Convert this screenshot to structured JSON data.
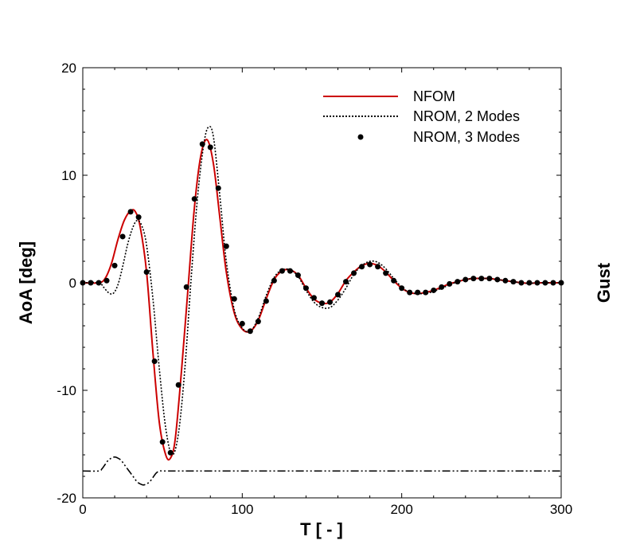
{
  "chart_data": {
    "type": "line",
    "xlabel": "T [ - ]",
    "ylabel": "AoA [deg]",
    "y2label": "Gust",
    "xlim": [
      0,
      300
    ],
    "ylim": [
      -20,
      20
    ],
    "xticks": [
      0,
      100,
      200,
      300
    ],
    "yticks": [
      -20,
      -10,
      0,
      10,
      20
    ],
    "grid": false,
    "legend_position": "top-right",
    "series": [
      {
        "name": "NFOM",
        "style": "solid",
        "color": "#cc0000",
        "x": [
          0,
          10,
          14,
          18,
          22,
          26,
          30,
          33,
          36,
          40,
          44,
          48,
          52,
          55,
          58,
          62,
          66,
          70,
          74,
          78,
          82,
          86,
          90,
          95,
          100,
          105,
          110,
          115,
          120,
          125,
          130,
          135,
          140,
          145,
          150,
          155,
          160,
          165,
          170,
          175,
          180,
          185,
          190,
          195,
          200,
          205,
          210,
          215,
          220,
          225,
          230,
          235,
          240,
          245,
          250,
          255,
          260,
          265,
          270,
          275,
          280,
          285,
          290,
          295,
          300
        ],
        "values": [
          0,
          0,
          0.4,
          1.8,
          4.0,
          5.8,
          6.7,
          6.6,
          5.2,
          1.0,
          -6.5,
          -13.0,
          -16.0,
          -16.3,
          -14.5,
          -8.0,
          -0.5,
          7.0,
          11.8,
          13.3,
          11.0,
          6.0,
          1.0,
          -2.8,
          -4.3,
          -4.5,
          -3.5,
          -1.5,
          0.3,
          1.1,
          1.2,
          0.7,
          -0.5,
          -1.5,
          -1.9,
          -1.8,
          -1.0,
          0.2,
          1.0,
          1.6,
          1.8,
          1.6,
          1.0,
          0.2,
          -0.5,
          -0.9,
          -1.0,
          -0.9,
          -0.7,
          -0.4,
          -0.1,
          0.1,
          0.3,
          0.4,
          0.4,
          0.4,
          0.3,
          0.2,
          0.1,
          0,
          -0.05,
          0,
          0,
          0,
          0
        ]
      },
      {
        "name": "NROM, 2 Modes",
        "style": "dotted",
        "color": "#000000",
        "x": [
          0,
          10,
          13,
          16,
          19,
          22,
          25,
          28,
          31,
          34,
          37,
          40,
          44,
          48,
          52,
          56,
          60,
          64,
          68,
          72,
          76,
          79,
          82,
          86,
          90,
          95,
          100,
          105,
          110,
          115,
          120,
          125,
          130,
          135,
          140,
          145,
          150,
          155,
          160,
          165,
          170,
          175,
          180,
          185,
          190,
          195,
          200,
          205,
          210,
          215,
          220,
          225,
          230,
          235,
          240,
          245,
          250,
          255,
          260,
          265,
          270,
          275,
          280,
          285,
          290,
          295,
          300
        ],
        "values": [
          0,
          0,
          -0.4,
          -0.9,
          -1.0,
          -0.2,
          1.5,
          3.5,
          5.0,
          5.8,
          5.3,
          3.5,
          -1.5,
          -8.0,
          -13.5,
          -16.0,
          -14.0,
          -8.0,
          0.5,
          8.0,
          13.0,
          14.5,
          13.5,
          8.0,
          2.0,
          -2.5,
          -4.2,
          -4.5,
          -3.3,
          -1.2,
          0.5,
          1.2,
          1.2,
          0.6,
          -0.7,
          -1.8,
          -2.3,
          -2.3,
          -1.6,
          -0.5,
          0.8,
          1.6,
          2.0,
          1.9,
          1.3,
          0.4,
          -0.4,
          -0.9,
          -1.0,
          -1.0,
          -0.8,
          -0.5,
          -0.2,
          0.1,
          0.3,
          0.4,
          0.4,
          0.4,
          0.3,
          0.2,
          0.1,
          0,
          -0.05,
          0,
          0,
          0,
          0
        ]
      },
      {
        "name": "NROM, 3 Modes",
        "style": "markers",
        "color": "#000000",
        "x": [
          0,
          5,
          10,
          15,
          20,
          25,
          30,
          35,
          40,
          45,
          50,
          55,
          60,
          65,
          70,
          75,
          80,
          85,
          90,
          95,
          100,
          105,
          110,
          115,
          120,
          125,
          130,
          135,
          140,
          145,
          150,
          155,
          160,
          165,
          170,
          175,
          180,
          185,
          190,
          195,
          200,
          205,
          210,
          215,
          220,
          225,
          230,
          235,
          240,
          245,
          250,
          255,
          260,
          265,
          270,
          275,
          280,
          285,
          290,
          295,
          300
        ],
        "values": [
          0,
          0,
          0,
          0.2,
          1.6,
          4.3,
          6.6,
          6.1,
          1.0,
          -7.3,
          -14.8,
          -15.8,
          -9.5,
          -0.4,
          7.8,
          12.9,
          12.6,
          8.8,
          3.4,
          -1.5,
          -3.8,
          -4.5,
          -3.6,
          -1.7,
          0.2,
          1.1,
          1.1,
          0.7,
          -0.5,
          -1.4,
          -1.9,
          -1.8,
          -1.1,
          0.1,
          0.9,
          1.5,
          1.7,
          1.5,
          0.9,
          0.2,
          -0.5,
          -0.9,
          -0.9,
          -0.9,
          -0.7,
          -0.4,
          -0.1,
          0.1,
          0.3,
          0.4,
          0.4,
          0.4,
          0.3,
          0.2,
          0.1,
          0,
          0,
          0,
          0,
          0,
          0
        ]
      },
      {
        "name": "Gust",
        "style": "dashdot",
        "color": "#000000",
        "x": [
          0,
          10,
          12,
          14,
          16,
          18,
          20,
          22,
          24,
          26,
          28,
          30,
          32,
          34,
          36,
          38,
          40,
          42,
          44,
          46,
          48,
          50,
          55,
          60,
          100,
          150,
          200,
          250,
          300
        ],
        "values": [
          -17.5,
          -17.5,
          -17.3,
          -16.9,
          -16.5,
          -16.3,
          -16.2,
          -16.3,
          -16.5,
          -16.9,
          -17.3,
          -17.7,
          -18.1,
          -18.5,
          -18.7,
          -18.8,
          -18.7,
          -18.5,
          -18.1,
          -17.7,
          -17.5,
          -17.5,
          -17.5,
          -17.5,
          -17.5,
          -17.5,
          -17.5,
          -17.5,
          -17.5
        ]
      }
    ]
  }
}
